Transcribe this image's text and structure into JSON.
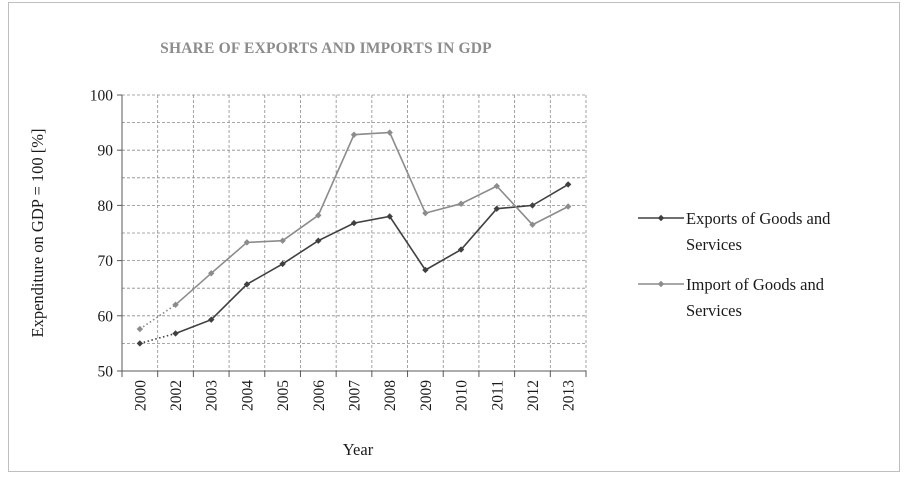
{
  "chart_data": {
    "type": "line",
    "title": "SHARE OF EXPORTS AND IMPORTS IN GDP",
    "xlabel": "Year",
    "ylabel": "Expenditure on GDP = 100 [%]",
    "categories": [
      "2000",
      "2002",
      "2003",
      "2004",
      "2005",
      "2006",
      "2007",
      "2008",
      "2009",
      "2010",
      "2011",
      "2012",
      "2013"
    ],
    "ylim": [
      50,
      100
    ],
    "yticks": [
      "50",
      "60",
      "70",
      "80",
      "90",
      "100"
    ],
    "grid": true,
    "legend_position": "right",
    "series": [
      {
        "name": "Exports of Goods and Services",
        "legend_lines": [
          "Exports of Goods and",
          "Services"
        ],
        "color": "#404040",
        "values": [
          55.0,
          56.8,
          59.3,
          65.7,
          69.4,
          73.6,
          76.8,
          78.0,
          68.3,
          72.0,
          79.4,
          80.0,
          83.8
        ]
      },
      {
        "name": "Import of Goods and Services",
        "legend_lines": [
          "Import of Goods and",
          "Services"
        ],
        "color": "#8c8c8c",
        "values": [
          57.6,
          62.0,
          67.7,
          73.3,
          73.6,
          78.2,
          92.8,
          93.2,
          78.6,
          80.3,
          83.5,
          76.5,
          79.8
        ]
      }
    ]
  }
}
